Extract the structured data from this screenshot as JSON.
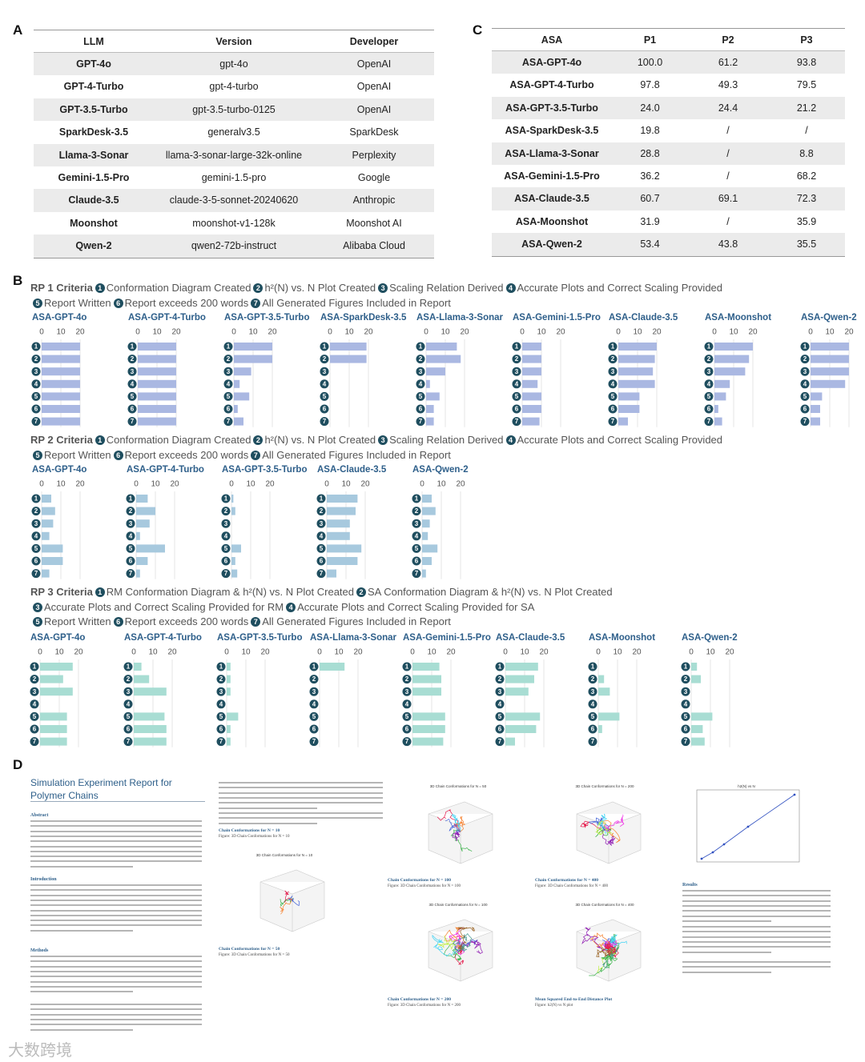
{
  "panel_labels": {
    "a": "A",
    "b": "B",
    "c": "C",
    "d": "D"
  },
  "table_a": {
    "header": [
      "LLM",
      "Version",
      "Developer"
    ],
    "rows": [
      [
        "GPT-4o",
        "gpt-4o",
        "OpenAI"
      ],
      [
        "GPT-4-Turbo",
        "gpt-4-turbo",
        "OpenAI"
      ],
      [
        "GPT-3.5-Turbo",
        "gpt-3.5-turbo-0125",
        "OpenAI"
      ],
      [
        "SparkDesk-3.5",
        "generalv3.5",
        "SparkDesk"
      ],
      [
        "Llama-3-Sonar",
        "llama-3-sonar-large-32k-online",
        "Perplexity"
      ],
      [
        "Gemini-1.5-Pro",
        "gemini-1.5-pro",
        "Google"
      ],
      [
        "Claude-3.5",
        "claude-3-5-sonnet-20240620",
        "Anthropic"
      ],
      [
        "Moonshot",
        "moonshot-v1-128k",
        "Moonshot AI"
      ],
      [
        "Qwen-2",
        "qwen2-72b-instruct",
        "Alibaba Cloud"
      ]
    ]
  },
  "table_c": {
    "header": [
      "ASA",
      "P1",
      "P2",
      "P3"
    ],
    "rows": [
      [
        "ASA-GPT-4o",
        "100.0",
        "61.2",
        "93.8"
      ],
      [
        "ASA-GPT-4-Turbo",
        "97.8",
        "49.3",
        "79.5"
      ],
      [
        "ASA-GPT-3.5-Turbo",
        "24.0",
        "24.4",
        "21.2"
      ],
      [
        "ASA-SparkDesk-3.5",
        "19.8",
        "/",
        "/"
      ],
      [
        "ASA-Llama-3-Sonar",
        "28.8",
        "/",
        "8.8"
      ],
      [
        "ASA-Gemini-1.5-Pro",
        "36.2",
        "/",
        "68.2"
      ],
      [
        "ASA-Claude-3.5",
        "60.7",
        "69.1",
        "72.3"
      ],
      [
        "ASA-Moonshot",
        "31.9",
        "/",
        "35.9"
      ],
      [
        "ASA-Qwen-2",
        "53.4",
        "43.8",
        "35.5"
      ]
    ]
  },
  "rp": [
    {
      "title": "RP 1 Criteria",
      "markers": [
        "1",
        "2",
        "3",
        "4",
        "5",
        "6",
        "7"
      ],
      "criteria": [
        [
          "Conformation Diagram Created",
          "h²(N) vs. N Plot Created",
          "Scaling Relation Derived",
          "Accurate Plots and Correct Scaling Provided"
        ],
        [
          "Report Written",
          "Report exceeds 200 words",
          "All Generated Figures Included in Report"
        ]
      ],
      "color": "#aab8e2",
      "xlim": [
        0,
        26
      ],
      "xticks": [
        0,
        10,
        20
      ],
      "charts": [
        {
          "name": "ASA-GPT-4o",
          "values": [
            20,
            20,
            20,
            20,
            20,
            20,
            20
          ]
        },
        {
          "name": "ASA-GPT-4-Turbo",
          "values": [
            20,
            20,
            20,
            20,
            20,
            20,
            20
          ]
        },
        {
          "name": "ASA-GPT-3.5-Turbo",
          "values": [
            20,
            20,
            9,
            3,
            8,
            2,
            5
          ]
        },
        {
          "name": "ASA-SparkDesk-3.5",
          "values": [
            19,
            19,
            0,
            0,
            0,
            0,
            0
          ]
        },
        {
          "name": "ASA-Llama-3-Sonar",
          "values": [
            16,
            18,
            10,
            2,
            7,
            4,
            4
          ]
        },
        {
          "name": "ASA-Gemini-1.5-Pro",
          "values": [
            10,
            10,
            10,
            8,
            10,
            10,
            9
          ]
        },
        {
          "name": "ASA-Claude-3.5",
          "values": [
            20,
            19,
            18,
            19,
            11,
            11,
            5
          ]
        },
        {
          "name": "ASA-Moonshot",
          "values": [
            20,
            18,
            16,
            8,
            6,
            2,
            4
          ]
        },
        {
          "name": "ASA-Qwen-2",
          "values": [
            20,
            20,
            20,
            18,
            6,
            5,
            5
          ]
        }
      ]
    },
    {
      "title": "RP 2 Criteria",
      "markers": [
        "1",
        "2",
        "3",
        "4",
        "5",
        "6",
        "7"
      ],
      "criteria": [
        [
          "Conformation Diagram Created",
          "h²(N) vs. N Plot Created",
          "Scaling Relation Derived",
          "Accurate Plots and Correct Scaling Provided"
        ],
        [
          "Report Written",
          "Report exceeds 200 words",
          "All Generated Figures Included in Report"
        ]
      ],
      "color": "#a7c9de",
      "xlim": [
        0,
        26
      ],
      "xticks": [
        0,
        10,
        20
      ],
      "charts": [
        {
          "name": "ASA-GPT-4o",
          "values": [
            5,
            7,
            6,
            4,
            11,
            11,
            4
          ]
        },
        {
          "name": "ASA-GPT-4-Turbo",
          "values": [
            6,
            10,
            7,
            2,
            15,
            6,
            2
          ]
        },
        {
          "name": "ASA-GPT-3.5-Turbo",
          "values": [
            1,
            2,
            0,
            0,
            5,
            2,
            3
          ]
        },
        {
          "name": "ASA-Claude-3.5",
          "values": [
            16,
            15,
            12,
            12,
            18,
            16,
            5
          ]
        },
        {
          "name": "ASA-Qwen-2",
          "values": [
            5,
            7,
            4,
            3,
            8,
            5,
            2
          ]
        }
      ]
    },
    {
      "title": "RP 3 Criteria",
      "markers": [
        "1",
        "2",
        "3",
        "4",
        "5",
        "6",
        "7"
      ],
      "criteria": [
        [
          "RM Conformation Diagram & h²(N) vs. N Plot Created",
          "SA Conformation Diagram & h²(N) vs. N Plot Created"
        ],
        [
          "Accurate Plots and Correct Scaling Provided for RM",
          "Accurate Plots and Correct Scaling Provided for SA"
        ],
        [
          "Report Written",
          "Report exceeds 200 words",
          "All Generated Figures Included in Report"
        ]
      ],
      "color": "#a8ddd3",
      "xlim": [
        0,
        26
      ],
      "xticks": [
        0,
        10,
        20
      ],
      "charts": [
        {
          "name": "ASA-GPT-4o",
          "values": [
            17,
            12,
            17,
            0,
            14,
            14,
            14
          ]
        },
        {
          "name": "ASA-GPT-4-Turbo",
          "values": [
            4,
            8,
            17,
            0,
            16,
            17,
            17
          ]
        },
        {
          "name": "ASA-GPT-3.5-Turbo",
          "values": [
            2,
            2,
            2,
            0,
            6,
            2,
            2
          ]
        },
        {
          "name": "ASA-Llama-3-Sonar",
          "values": [
            13,
            0,
            0,
            0,
            0,
            0,
            0
          ]
        },
        {
          "name": "ASA-Gemini-1.5-Pro",
          "values": [
            14,
            15,
            15,
            0,
            17,
            17,
            16
          ]
        },
        {
          "name": "ASA-Claude-3.5",
          "values": [
            17,
            15,
            12,
            0,
            18,
            16,
            5
          ]
        },
        {
          "name": "ASA-Moonshot",
          "values": [
            0,
            3,
            6,
            0,
            11,
            2,
            0
          ]
        },
        {
          "name": "ASA-Qwen-2",
          "values": [
            3,
            5,
            0,
            0,
            11,
            6,
            7
          ]
        }
      ]
    }
  ],
  "report": {
    "title": "Simulation Experiment Report for Polymer Chains",
    "headings": [
      "Abstract",
      "Introduction",
      "Methods",
      "Results"
    ],
    "plot_titles": [
      "3D Chain Conformations for N = 10",
      "3D Chain Conformations for N = 50",
      "3D Chain Conformations for N = 200",
      "3D Chain Conformations for N = 100",
      "3D Chain Conformations for N = 400",
      "h2(N) vs N"
    ],
    "captions": [
      {
        "title": "Chain Conformations for N = 10",
        "figure": "Figure: 3D Chain Conformations for N = 10"
      },
      {
        "title": "Chain Conformations for N = 50",
        "figure": "Figure: 3D Chain Conformations for N = 50"
      },
      {
        "title": "Chain Conformations for N = 100",
        "figure": "Figure: 3D Chain Conformations for N = 100"
      },
      {
        "title": "Chain Conformations for N = 400",
        "figure": "Figure: 3D Chain Conformations for N = 400"
      },
      {
        "title": "Chain Conformations for N = 200",
        "figure": "Figure: 3D Chain Conformations for N = 200"
      },
      {
        "title": "Mean Squared End-to-End Distance Plot",
        "figure": "Figure: h2(N) vs N plot"
      }
    ]
  },
  "watermark": "大数跨境"
}
